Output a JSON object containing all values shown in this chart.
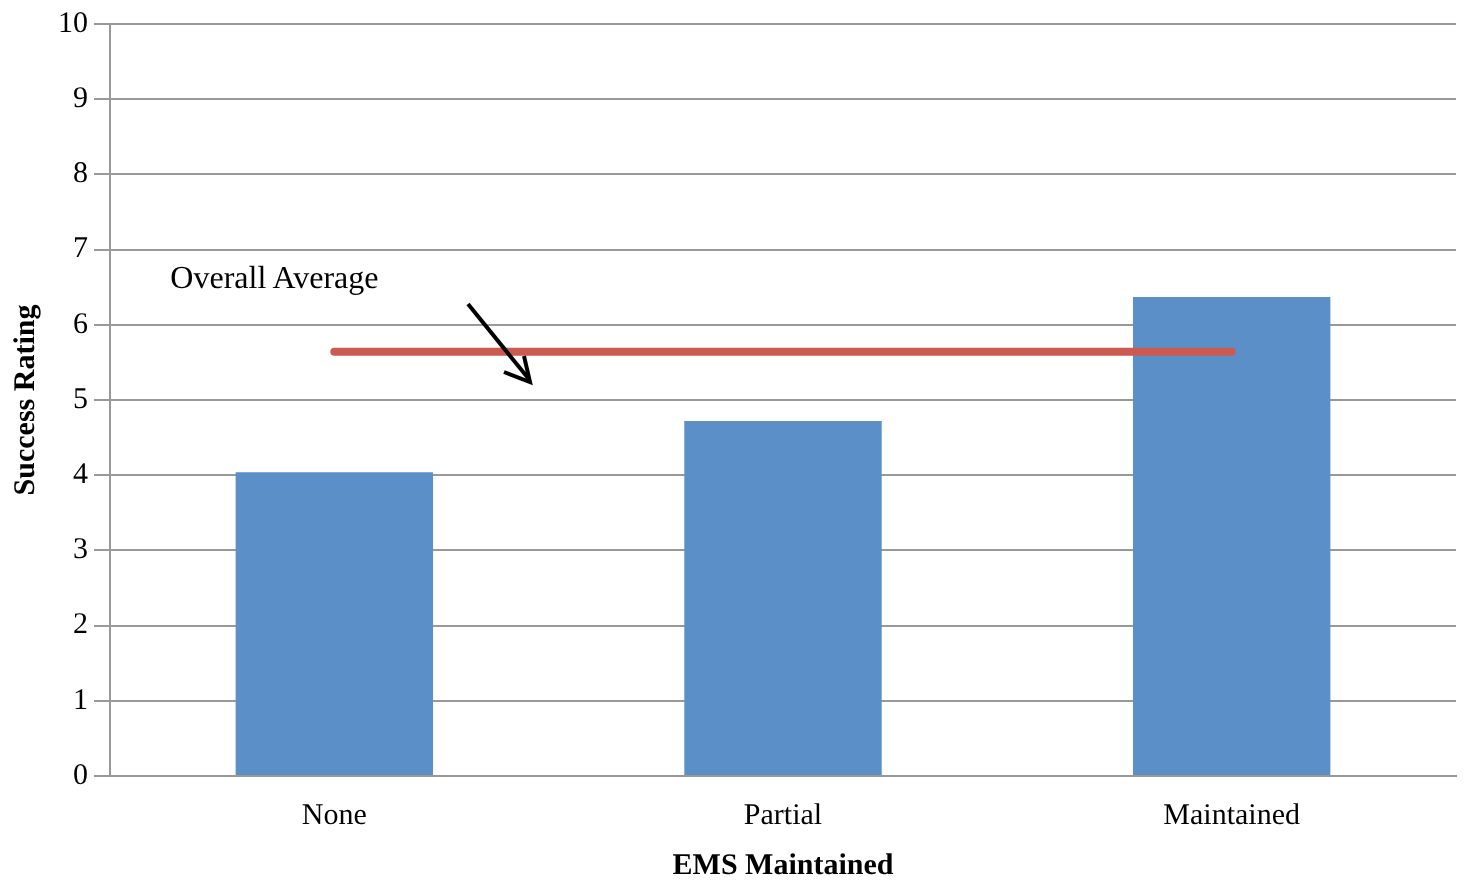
{
  "chart_data": {
    "type": "bar",
    "xlabel": "EMS Maintained",
    "ylabel": "Success Rating",
    "categories": [
      "None",
      "Partial",
      "Maintained"
    ],
    "values": [
      4.04,
      4.72,
      6.37
    ],
    "color": "#5b8fc7",
    "ylim": [
      0,
      10
    ],
    "yticks": [
      0,
      1,
      2,
      3,
      4,
      5,
      6,
      7,
      8,
      9,
      10
    ],
    "grid": "y",
    "ref_lines": [
      {
        "axis": "y",
        "value": 5.64,
        "label": "Overall Average",
        "color": "#cc5a50"
      }
    ]
  }
}
